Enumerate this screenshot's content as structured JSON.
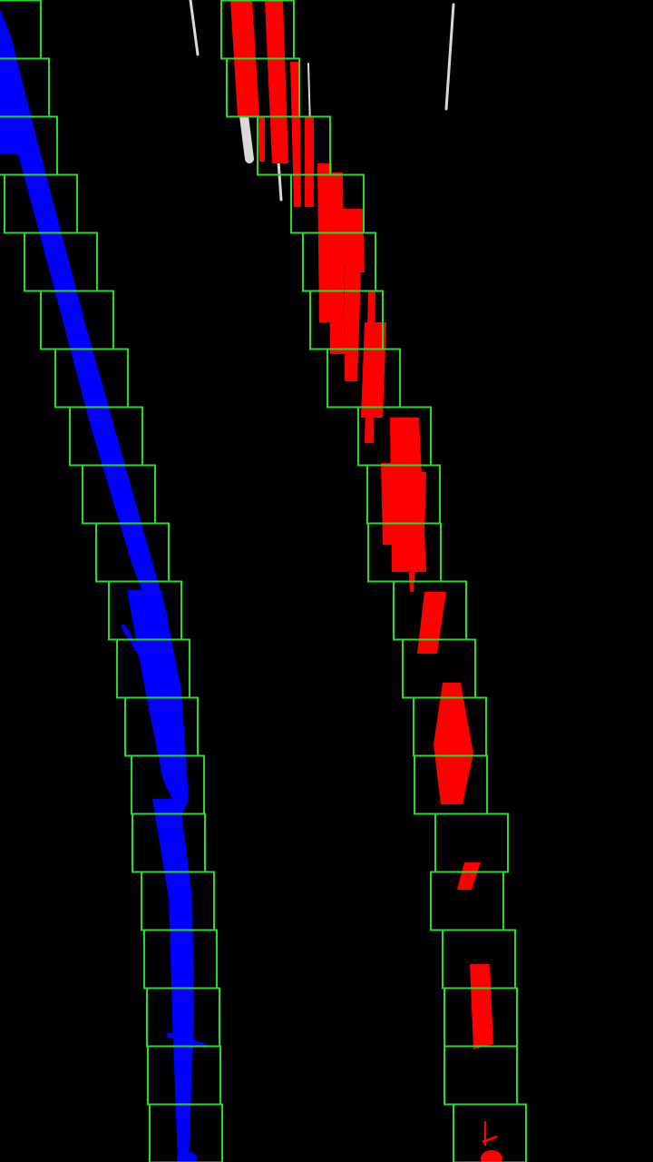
{
  "view": {
    "background_color": "#000000",
    "window_color": "#22dd22",
    "left_lane_color": "#0000ff",
    "right_lane_color": "#ff0000",
    "glare_color": "#ffffff"
  },
  "detection": {
    "window_count_per_lane": 20,
    "lanes": [
      {
        "side": "left",
        "color": "#0000ff"
      },
      {
        "side": "right",
        "color": "#ff0000"
      }
    ]
  }
}
